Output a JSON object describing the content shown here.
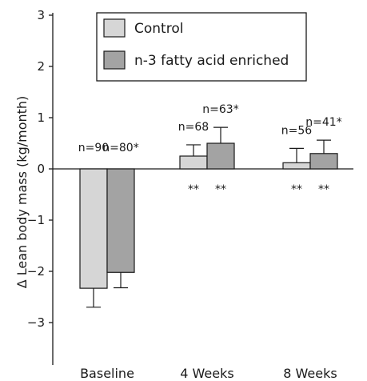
{
  "chart_data": {
    "type": "bar",
    "categories": [
      "Baseline",
      "4 Weeks",
      "8 Weeks"
    ],
    "ylabel": "Δ Lean body mass (kg/month)",
    "ylim": [
      -3.3,
      3.5
    ],
    "yticks": [
      3,
      2,
      1,
      0,
      -1,
      -2,
      -3
    ],
    "ytick_labels": [
      "3",
      "2",
      "1",
      "0",
      "−1",
      "−2",
      "−3"
    ],
    "legend_placement": "top-center",
    "series": [
      {
        "name": "Control",
        "color": "#d6d6d6",
        "values": [
          -2.33,
          0.25,
          0.12
        ],
        "error": [
          0.37,
          0.22,
          0.28
        ],
        "n_labels": [
          "n=90",
          "n=68",
          "n=56"
        ],
        "sig_labels": [
          "",
          "**",
          "**"
        ]
      },
      {
        "name": "n-3 fatty acid enriched",
        "color": "#a3a3a3",
        "values": [
          -2.02,
          0.5,
          0.3
        ],
        "error": [
          0.3,
          0.31,
          0.26
        ],
        "n_labels": [
          "n=80*",
          "n=63*",
          "n=41*"
        ],
        "sig_labels": [
          "",
          "**",
          "**"
        ]
      }
    ]
  }
}
